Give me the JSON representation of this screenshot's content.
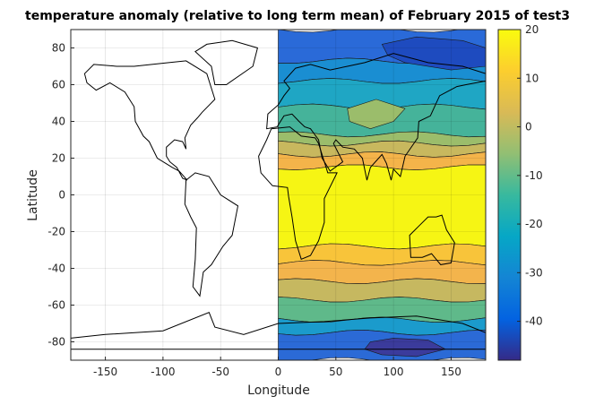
{
  "chart_data": {
    "type": "heatmap",
    "title": "temperature anomaly (relative to long term mean) of February 2015 of test3",
    "xlabel": "Longitude",
    "ylabel": "Latitude",
    "xlim": [
      -180,
      180
    ],
    "ylim": [
      -90,
      90
    ],
    "xticks": [
      -150,
      -100,
      -50,
      0,
      50,
      100,
      150
    ],
    "yticks": [
      -80,
      -60,
      -40,
      -20,
      0,
      20,
      40,
      60,
      80
    ],
    "grid": true,
    "data_longitude_range": [
      0,
      180
    ],
    "colorbar": {
      "limits": [
        -48,
        20
      ],
      "ticks": [
        -40,
        -30,
        -20,
        -10,
        0,
        10,
        20
      ],
      "colors": [
        "#352a87",
        "#0363e1",
        "#1485d4",
        "#06a7c6",
        "#38b99e",
        "#92bf73",
        "#d9ba56",
        "#fcce2e",
        "#f9fb0e"
      ]
    },
    "bands": [
      {
        "lat_from": 90,
        "lat_to": 73,
        "value": -38,
        "color": "#2a6ad8"
      },
      {
        "lat_from": 73,
        "lat_to": 62,
        "value": -30,
        "color": "#1a8ed2"
      },
      {
        "lat_from": 62,
        "lat_to": 48,
        "value": -20,
        "color": "#1fa6c4"
      },
      {
        "lat_from": 48,
        "lat_to": 33,
        "value": -12,
        "color": "#45b39a"
      },
      {
        "lat_from": 33,
        "lat_to": 28,
        "value": -2,
        "color": "#9bbd6b"
      },
      {
        "lat_from": 28,
        "lat_to": 22,
        "value": 6,
        "color": "#c8b85e"
      },
      {
        "lat_from": 22,
        "lat_to": 15,
        "value": 12,
        "color": "#f4b44a"
      },
      {
        "lat_from": 15,
        "lat_to": -28,
        "value": 19,
        "color": "#f6f514"
      },
      {
        "lat_from": -28,
        "lat_to": -37,
        "value": 12,
        "color": "#f8c43a"
      },
      {
        "lat_from": -37,
        "lat_to": -47,
        "value": 10,
        "color": "#f3b44c"
      },
      {
        "lat_from": -47,
        "lat_to": -57,
        "value": 4,
        "color": "#c6b860"
      },
      {
        "lat_from": -57,
        "lat_to": -68,
        "value": -6,
        "color": "#5fb98a"
      },
      {
        "lat_from": -68,
        "lat_to": -75,
        "value": -22,
        "color": "#1b9bcc"
      },
      {
        "lat_from": -75,
        "lat_to": -90,
        "value": -36,
        "color": "#2b6ad6"
      }
    ],
    "patches": [
      {
        "lon": [
          80,
          100,
          130,
          145,
          120,
          90,
          75
        ],
        "lat": [
          -80,
          -78,
          -79,
          -84,
          -88,
          -87,
          -84
        ],
        "value": -46,
        "color": "#3b3b9c"
      },
      {
        "lon": [
          90,
          120,
          160,
          180,
          180,
          150,
          110,
          95
        ],
        "lat": [
          82,
          86,
          84,
          80,
          70,
          68,
          72,
          76
        ],
        "value": -45,
        "color": "#1e4bbf"
      },
      {
        "lon": [
          60,
          85,
          110,
          100,
          80,
          62
        ],
        "lat": [
          47,
          52,
          47,
          40,
          36,
          40
        ],
        "value": -2,
        "color": "#9bbd6b"
      }
    ]
  }
}
